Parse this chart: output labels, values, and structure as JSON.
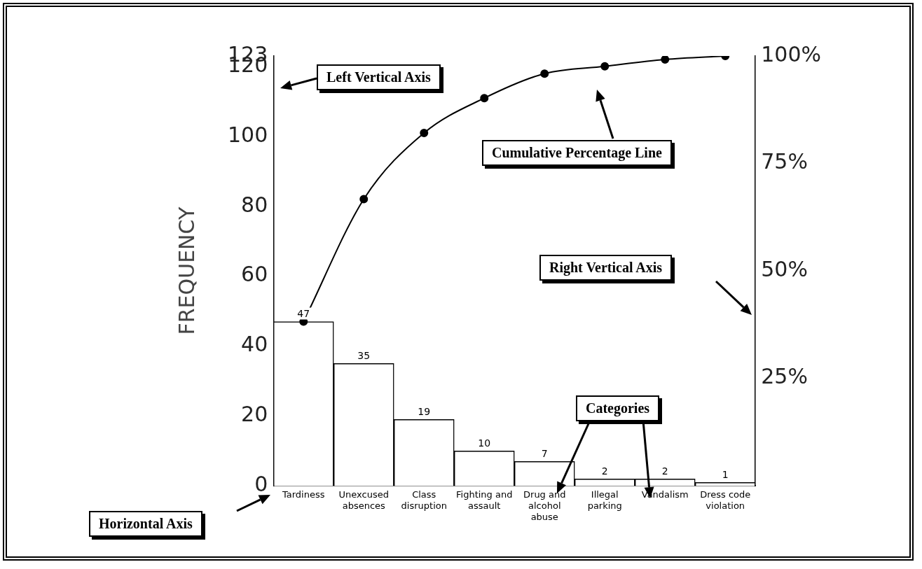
{
  "chart_data": {
    "type": "bar",
    "ylabel": "FREQUENCY",
    "categories": [
      "Tardiness",
      "Unexcused absences",
      "Class disruption",
      "Fighting and assault",
      "Drug and alcohol abuse",
      "Illegal parking",
      "Vandalism",
      "Dress code violation"
    ],
    "series": [
      {
        "type": "bar",
        "color": "#ffffff",
        "values": [
          47,
          35,
          19,
          10,
          7,
          2,
          2,
          1
        ],
        "value_labels": [
          "47",
          "35",
          "19",
          "10",
          "7",
          "2",
          "2",
          "1"
        ]
      },
      {
        "type": "line",
        "axis": "y2",
        "color": "#000000",
        "values": [
          38.2,
          66.7,
          82.1,
          90.2,
          95.9,
          97.6,
          99.2,
          100
        ]
      }
    ],
    "marker": "circle",
    "line_style": "solid",
    "ylim": [
      0,
      123
    ],
    "yticks": [
      0,
      20,
      40,
      60,
      80,
      100,
      120,
      123
    ],
    "y2lim": [
      0,
      100
    ],
    "y2ticks": [
      {
        "value": 25,
        "label": "25%"
      },
      {
        "value": 50,
        "label": "50%"
      },
      {
        "value": 75,
        "label": "75%"
      },
      {
        "value": 100,
        "label": "100%"
      }
    ],
    "grid": false,
    "legend": false,
    "annotations": [
      "Left Vertical Axis",
      "Cumulative Percentage Line",
      "Right Vertical Axis",
      "Categories",
      "Horizontal Axis"
    ]
  }
}
